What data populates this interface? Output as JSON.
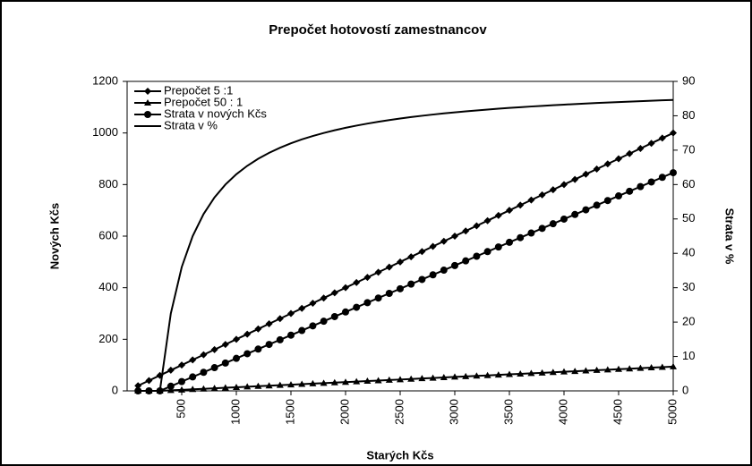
{
  "chart_data": {
    "type": "line",
    "title": "Prepočet hotovostí zamestnancov",
    "x_label": "Starých Kčs",
    "y_label": "Nových Kčs",
    "y2_label": "Strata v %",
    "x": [
      100,
      200,
      300,
      400,
      500,
      600,
      700,
      800,
      900,
      1000,
      1100,
      1200,
      1300,
      1400,
      1500,
      1600,
      1700,
      1800,
      1900,
      2000,
      2100,
      2200,
      2300,
      2400,
      2500,
      2600,
      2700,
      2800,
      2900,
      3000,
      3100,
      3200,
      3300,
      3400,
      3500,
      3600,
      3700,
      3800,
      3900,
      4000,
      4100,
      4200,
      4300,
      4400,
      4500,
      4600,
      4700,
      4800,
      4900,
      5000
    ],
    "xlim": [
      0,
      5000
    ],
    "xticks": [
      500,
      1000,
      1500,
      2000,
      2500,
      3000,
      3500,
      4000,
      4500,
      5000
    ],
    "ylim": [
      0,
      1200
    ],
    "yticks": [
      0,
      200,
      400,
      600,
      800,
      1000,
      1200
    ],
    "y2lim": [
      0,
      90
    ],
    "y2ticks": [
      0,
      10,
      20,
      30,
      40,
      50,
      60,
      70,
      80,
      90
    ],
    "legend": "upper left",
    "series": [
      {
        "name": "Prepočet 5 :1",
        "color": "#000000",
        "marker": "diamond",
        "values": [
          20,
          40,
          60,
          80,
          100,
          120,
          140,
          160,
          180,
          200,
          220,
          240,
          260,
          280,
          300,
          320,
          340,
          360,
          380,
          400,
          420,
          440,
          460,
          480,
          500,
          520,
          540,
          560,
          580,
          600,
          620,
          640,
          660,
          680,
          700,
          720,
          740,
          760,
          780,
          800,
          820,
          840,
          860,
          880,
          900,
          920,
          940,
          960,
          980,
          1000
        ]
      },
      {
        "name": "Prepočet 50 : 1",
        "color": "#000000",
        "marker": "triangle",
        "values": [
          0,
          0,
          0,
          2,
          4,
          6,
          8,
          10,
          12,
          14,
          16,
          18,
          20,
          22,
          24,
          26,
          28,
          30,
          32,
          34,
          36,
          38,
          40,
          42,
          44,
          46,
          48,
          50,
          52,
          54,
          56,
          58,
          60,
          62,
          64,
          66,
          68,
          70,
          72,
          74,
          76,
          78,
          80,
          82,
          84,
          86,
          88,
          90,
          92,
          94
        ]
      },
      {
        "name": "Strata v nových Kčs",
        "color": "#000000",
        "marker": "circle",
        "values": [
          0,
          0,
          0,
          18,
          36,
          54,
          72,
          90,
          108,
          126,
          144,
          162,
          180,
          198,
          216,
          234,
          252,
          270,
          288,
          306,
          324,
          342,
          360,
          378,
          396,
          414,
          432,
          450,
          468,
          486,
          504,
          522,
          540,
          558,
          576,
          594,
          612,
          630,
          648,
          666,
          684,
          702,
          720,
          738,
          756,
          774,
          792,
          810,
          828,
          846
        ]
      },
      {
        "name": "Strata v %",
        "color": "#000000",
        "marker": "none",
        "axis": "y2",
        "values": [
          0,
          0,
          0,
          22.5,
          36,
          45,
          51.43,
          56.25,
          60,
          63,
          65.45,
          67.5,
          69.23,
          70.71,
          72,
          73.13,
          74.12,
          75,
          75.79,
          76.5,
          77.14,
          77.73,
          78.26,
          78.75,
          79.2,
          79.62,
          80,
          80.36,
          80.69,
          81,
          81.29,
          81.56,
          81.82,
          82.06,
          82.29,
          82.5,
          82.7,
          82.89,
          83.08,
          83.25,
          83.41,
          83.57,
          83.72,
          83.86,
          84,
          84.13,
          84.26,
          84.38,
          84.49,
          84.6
        ]
      }
    ]
  }
}
